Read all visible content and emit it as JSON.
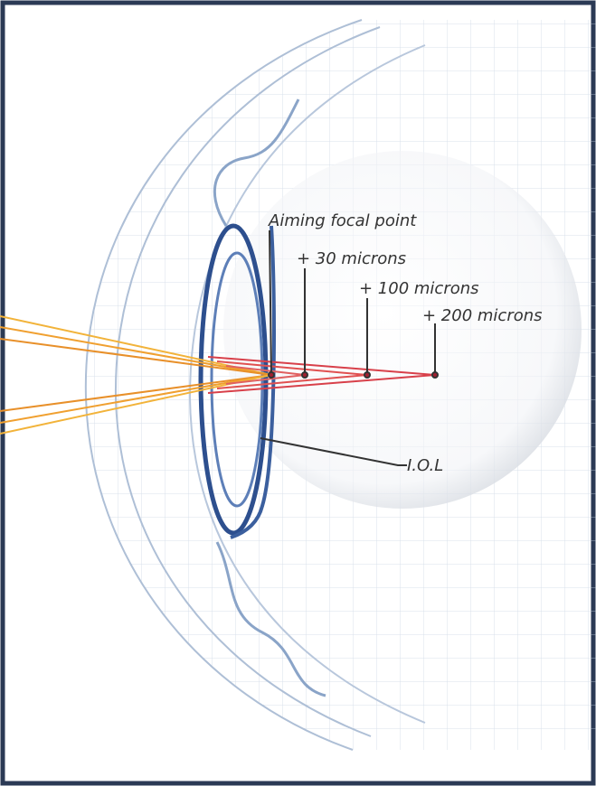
{
  "labels": {
    "aiming_focal_point": "Aiming focal point",
    "plus_30": "+ 30 microns",
    "plus_100": "+ 100 microns",
    "plus_200": "+ 200 microns",
    "iol": "I.O.L"
  }
}
